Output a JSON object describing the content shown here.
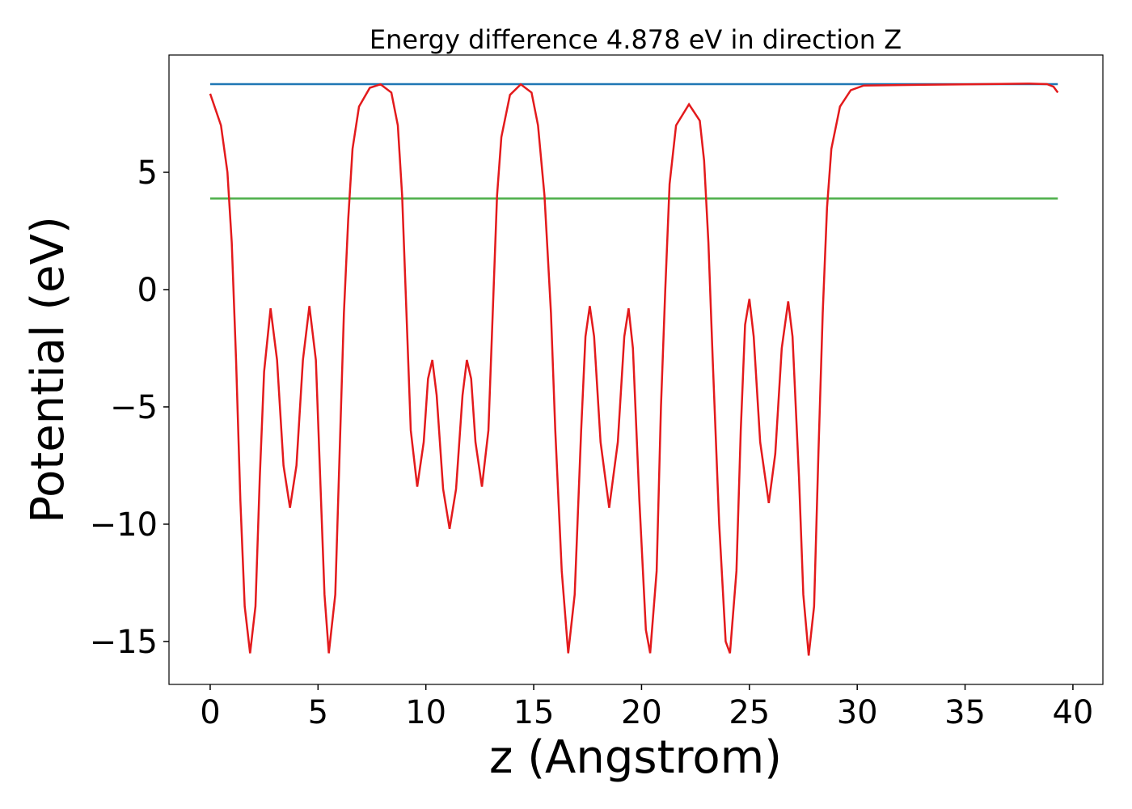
{
  "chart_data": {
    "type": "line",
    "title": "Energy difference 4.878 eV in direction Z",
    "xlabel": "z (Angstrom)",
    "ylabel": "Potential (eV)",
    "xlim": [
      -1.91,
      41.39
    ],
    "ylim": [
      -16.83,
      10.0
    ],
    "xticks": [
      0,
      5,
      10,
      15,
      20,
      25,
      30,
      35,
      40
    ],
    "yticks": [
      {
        "value": -15,
        "label": "−15"
      },
      {
        "value": -10,
        "label": "−10"
      },
      {
        "value": -5,
        "label": "−5"
      },
      0,
      5
    ],
    "grid": false,
    "series": [
      {
        "color": "#e31a1c",
        "x": [
          0,
          0.5,
          0.8,
          1.0,
          1.2,
          1.4,
          1.6,
          1.85,
          2.1,
          2.3,
          2.5,
          2.8,
          3.1,
          3.4,
          3.7,
          4.0,
          4.3,
          4.6,
          4.9,
          5.1,
          5.3,
          5.5,
          5.8,
          6.0,
          6.2,
          6.4,
          6.6,
          6.9,
          7.4,
          7.9,
          8.4,
          8.7,
          8.9,
          9.1,
          9.3,
          9.6,
          9.9,
          10.1,
          10.3,
          10.5,
          10.8,
          11.1,
          11.4,
          11.7,
          11.9,
          12.1,
          12.3,
          12.6,
          12.9,
          13.1,
          13.3,
          13.5,
          13.9,
          14.4,
          14.9,
          15.2,
          15.5,
          15.8,
          16.0,
          16.3,
          16.6,
          16.9,
          17.2,
          17.4,
          17.6,
          17.8,
          18.1,
          18.5,
          18.9,
          19.2,
          19.4,
          19.6,
          19.9,
          20.2,
          20.4,
          20.7,
          20.9,
          21.1,
          21.3,
          21.6,
          22.2,
          22.7,
          22.9,
          23.1,
          23.3,
          23.6,
          23.9,
          24.1,
          24.4,
          24.6,
          24.8,
          25.0,
          25.2,
          25.5,
          25.9,
          26.2,
          26.5,
          26.8,
          27.0,
          27.3,
          27.5,
          27.75,
          28.0,
          28.2,
          28.4,
          28.6,
          28.8,
          29.2,
          29.7,
          30.3,
          32,
          35,
          38,
          38.8,
          39.1,
          39.3
        ],
        "values": [
          8.35,
          7.0,
          5.0,
          2.0,
          -3.0,
          -9.0,
          -13.5,
          -15.5,
          -13.5,
          -8.0,
          -3.5,
          -0.8,
          -3.0,
          -7.5,
          -9.3,
          -7.5,
          -3.0,
          -0.7,
          -3.0,
          -8.0,
          -13.0,
          -15.5,
          -13.0,
          -7.0,
          -1.0,
          3.0,
          6.0,
          7.8,
          8.6,
          8.75,
          8.4,
          7.0,
          4.0,
          -1.0,
          -6.0,
          -8.4,
          -6.5,
          -3.8,
          -3.0,
          -4.5,
          -8.5,
          -10.2,
          -8.5,
          -4.5,
          -3.0,
          -3.8,
          -6.5,
          -8.4,
          -6.0,
          -1.0,
          4.0,
          6.5,
          8.3,
          8.75,
          8.4,
          7.0,
          4.0,
          -1.0,
          -6.0,
          -12.0,
          -15.5,
          -13.0,
          -6.0,
          -2.0,
          -0.7,
          -2.0,
          -6.5,
          -9.3,
          -6.5,
          -2.0,
          -0.8,
          -2.5,
          -9.0,
          -14.5,
          -15.5,
          -12.0,
          -5.0,
          0.0,
          4.5,
          7.0,
          7.9,
          7.2,
          5.5,
          2.0,
          -3.0,
          -10.0,
          -15.0,
          -15.5,
          -12.0,
          -6.0,
          -1.5,
          -0.4,
          -2.0,
          -6.5,
          -9.1,
          -7.0,
          -2.5,
          -0.5,
          -2.0,
          -8.0,
          -13.0,
          -15.6,
          -13.5,
          -7.0,
          -1.0,
          3.5,
          6.0,
          7.8,
          8.5,
          8.7,
          8.72,
          8.75,
          8.78,
          8.76,
          8.65,
          8.4
        ]
      },
      {
        "color": "#1f77b4",
        "x": [
          0,
          39.3
        ],
        "values": [
          8.76,
          8.76
        ]
      },
      {
        "color": "#4daf4a",
        "x": [
          0,
          39.3
        ],
        "values": [
          3.882,
          3.882
        ]
      }
    ]
  }
}
